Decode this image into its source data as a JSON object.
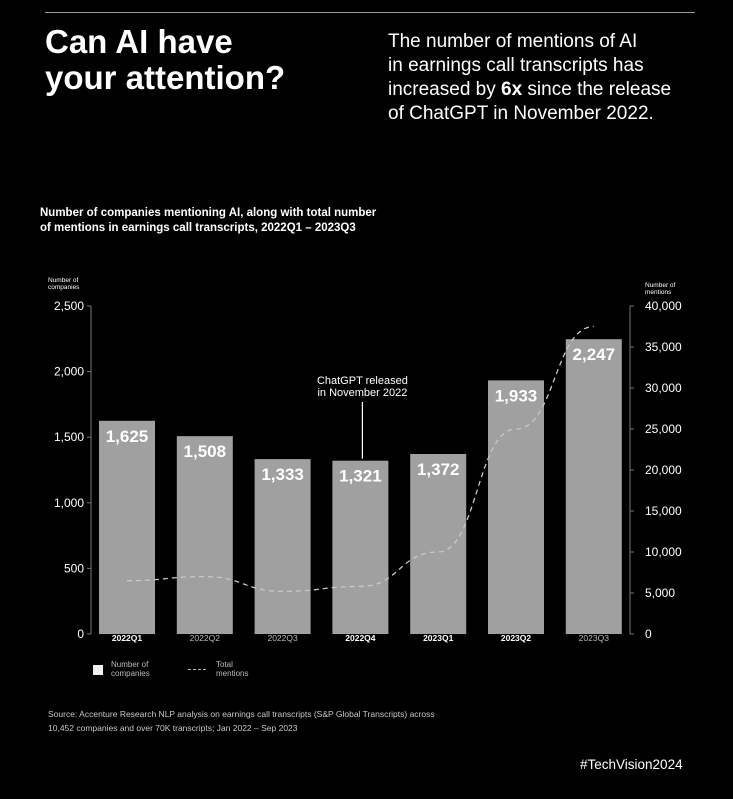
{
  "headline": {
    "line1": "Can AI have",
    "line2": "your attention?"
  },
  "intro": {
    "line1": "The number of mentions of AI",
    "line2": "in earnings call transcripts has",
    "line3_pre": "increased by ",
    "line3_bold": "6x",
    "line3_post": " since the release",
    "line4": "of ChatGPT in November 2022."
  },
  "chart_title": {
    "line1": "Number of companies mentioning AI, along with total number",
    "line2": "of mentions in earnings call transcripts, 2022Q1 – 2023Q3"
  },
  "chart_data": {
    "type": "bar",
    "categories": [
      "2022Q1",
      "2022Q2",
      "2022Q3",
      "2022Q4",
      "2023Q1",
      "2023Q2",
      "2023Q3"
    ],
    "series": [
      {
        "name": "Number of companies",
        "type": "bar",
        "axis": "left",
        "values": [
          1625,
          1508,
          1333,
          1321,
          1372,
          1933,
          2247
        ],
        "labels": [
          "1,625",
          "1,508",
          "1,333",
          "1,321",
          "1,372",
          "1,933",
          "2,247"
        ]
      },
      {
        "name": "Total mentions",
        "type": "line",
        "axis": "right",
        "values": [
          6500,
          7000,
          5200,
          5800,
          10000,
          25000,
          37500
        ]
      }
    ],
    "y_left": {
      "label_line1": "Number of",
      "label_line2": "companies",
      "ticks": [
        "0",
        "500",
        "1,000",
        "1,500",
        "2,000",
        "2,500"
      ],
      "tick_values": [
        0,
        500,
        1000,
        1500,
        2000,
        2500
      ],
      "range": [
        0,
        2500
      ]
    },
    "y_right": {
      "label_line1": "Number of",
      "label_line2": "mentions",
      "ticks": [
        "0",
        "5,000",
        "10,000",
        "15,000",
        "20,000",
        "25,000",
        "30,000",
        "35,000",
        "40,000"
      ],
      "tick_values": [
        0,
        5000,
        10000,
        15000,
        20000,
        25000,
        30000,
        35000,
        40000
      ],
      "range": [
        0,
        40000
      ]
    },
    "highlight_categories": [
      "2022Q1",
      "2022Q4",
      "2023Q1",
      "2023Q2"
    ],
    "annotation": {
      "line1": "ChatGPT released",
      "line2": "in November 2022",
      "category": "2022Q4"
    },
    "colors": {
      "bar": "#a0a0a0",
      "line": "#c8c8c8",
      "text": "#ffffff",
      "muted": "#bbbbbb"
    }
  },
  "legend": {
    "bars_line1": "Number of",
    "bars_line2": "companies",
    "line_line1": "Total",
    "line_line2": "mentions"
  },
  "source": {
    "line1": "Source: Accenture Research NLP analysis on earnings call transcripts (S&P Global Transcripts) across",
    "line2": "10,452 companies and over 70K transcripts; Jan 2022 – Sep 2023"
  },
  "hashtag": "#TechVision2024"
}
